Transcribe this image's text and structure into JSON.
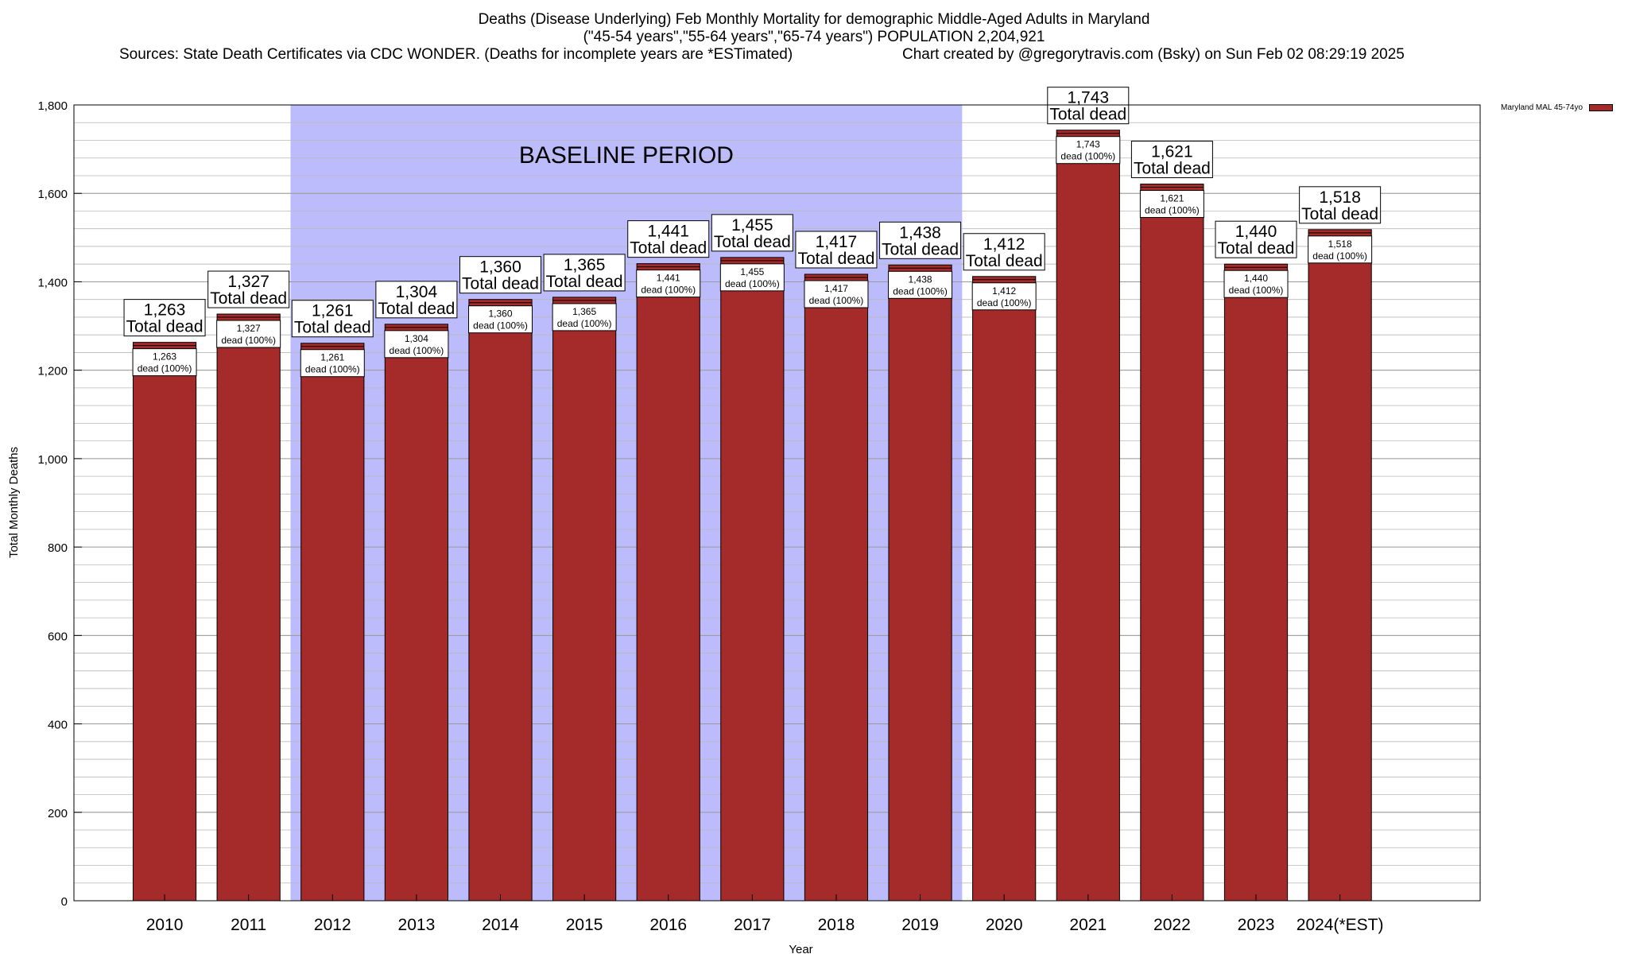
{
  "title": {
    "line1": "Deaths (Disease Underlying) Feb Monthly Mortality for demographic Middle-Aged Adults in Maryland",
    "line2": "(\"45-54 years\",\"55-64 years\",\"65-74 years\") POPULATION 2,204,921",
    "sources": "Sources: State Death Certificates via CDC WONDER. (Deaths for incomplete years are *ESTimated)",
    "credit": "Chart created by @gregorytravis.com (Bsky) on Sun Feb 02 08:29:19 2025"
  },
  "colors": {
    "bar": "#a52a2a",
    "baseline_band": "#bcbcfc",
    "grid": "#b8b8b8"
  },
  "chart_data": {
    "type": "bar",
    "categories": [
      "2010",
      "2011",
      "2012",
      "2013",
      "2014",
      "2015",
      "2016",
      "2017",
      "2018",
      "2019",
      "2020",
      "2021",
      "2022",
      "2023",
      "2024(*EST)"
    ],
    "series": [
      {
        "name": "Maryland MAL 45-74yo",
        "values": [
          1263,
          1327,
          1261,
          1304,
          1360,
          1365,
          1441,
          1455,
          1417,
          1438,
          1412,
          1743,
          1621,
          1440,
          1518
        ]
      }
    ],
    "value_labels": [
      "1,263",
      "1,327",
      "1,261",
      "1,304",
      "1,360",
      "1,365",
      "1,441",
      "1,455",
      "1,417",
      "1,438",
      "1,412",
      "1,743",
      "1,621",
      "1,440",
      "1,518"
    ],
    "total_suffix": "Total dead",
    "inner_suffix": "dead (100%)",
    "xlabel": "Year",
    "ylabel": "Total Monthly Deaths",
    "ylim": [
      0,
      1800
    ],
    "yticks": [
      0,
      200,
      400,
      600,
      800,
      1000,
      1200,
      1400,
      1600,
      1800
    ],
    "ytick_labels": [
      "0",
      "200",
      "400",
      "600",
      "800",
      "1,000",
      "1,200",
      "1,400",
      "1,600",
      "1,800"
    ],
    "minor_step": 40,
    "grid": true,
    "legend_position": "top-right",
    "band": {
      "label": "BASELINE PERIOD",
      "from": "2012",
      "to": "2019"
    }
  }
}
